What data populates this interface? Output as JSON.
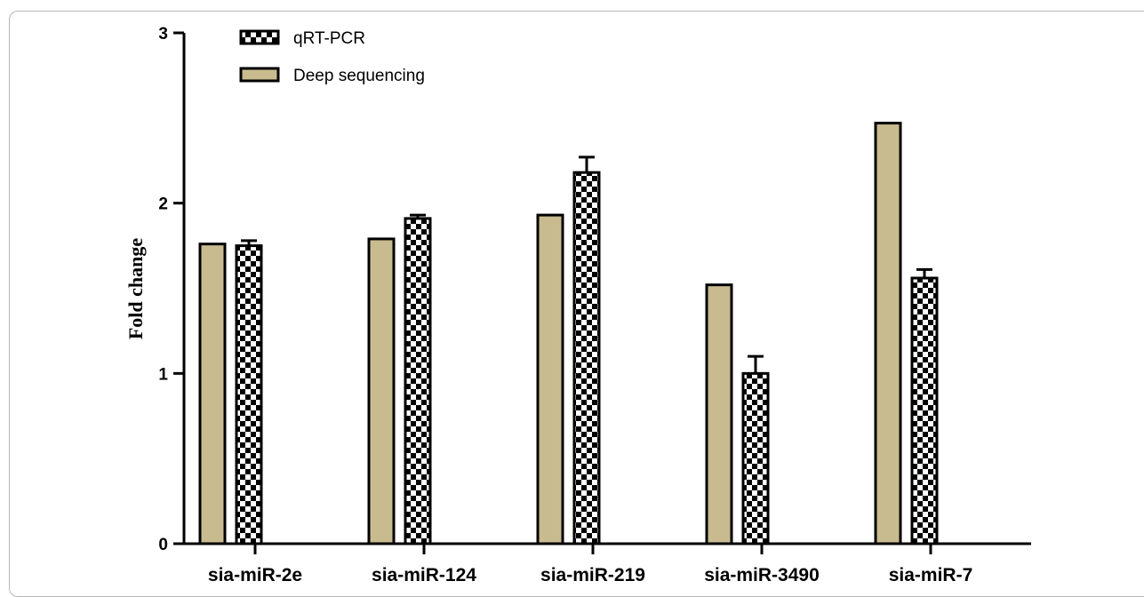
{
  "chart_data": {
    "type": "bar",
    "title": "",
    "xlabel": "",
    "ylabel": "Fold change",
    "ylim": [
      0,
      3
    ],
    "yticks": [
      "0",
      "1",
      "2",
      "3"
    ],
    "grid": false,
    "legend_position": "top-left",
    "categories": [
      "sja-miR-2e",
      "sja-miR-124",
      "sja-miR-219",
      "sja-miR-3490",
      "sja-miR-7"
    ],
    "series": [
      {
        "name": "Deep sequencing",
        "pattern": "solid",
        "color": "#c8bb8f",
        "values": [
          1.76,
          1.79,
          1.93,
          1.52,
          2.47
        ],
        "errors": [
          0,
          0,
          0,
          0,
          0
        ]
      },
      {
        "name": "qRT-PCR",
        "pattern": "checkerboard",
        "color": "#000000",
        "values": [
          1.75,
          1.91,
          2.18,
          1.0,
          1.56
        ],
        "errors": [
          0.03,
          0.02,
          0.09,
          0.1,
          0.05
        ]
      }
    ],
    "legend": [
      "qRT-PCR",
      "Deep sequencing"
    ]
  }
}
